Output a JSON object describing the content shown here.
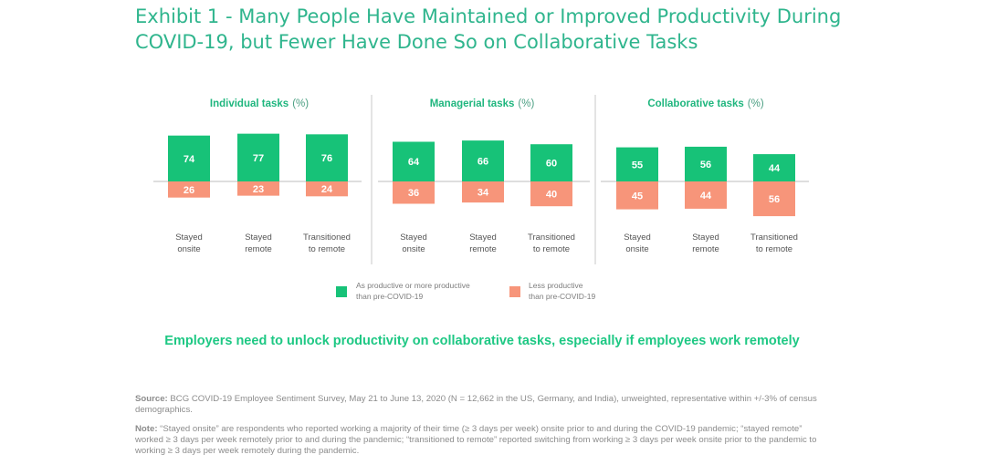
{
  "title": {
    "line1": "Exhibit 1 - Many People Have Maintained or Improved Productivity During",
    "line2": "COVID-19, but Fewer Have Done So on Collaborative Tasks"
  },
  "colors": {
    "positive": "#17c278",
    "negative": "#f7957a",
    "title": "#2fb58d",
    "takeaway": "#1ec884"
  },
  "chart_data": [
    {
      "type": "bar",
      "title": "Individual tasks",
      "unit": "(%)",
      "categories": [
        "Stayed onsite",
        "Stayed remote",
        "Transitioned to remote"
      ],
      "series": [
        {
          "name": "As productive or more productive than pre-COVID-19",
          "values": [
            74,
            77,
            76
          ]
        },
        {
          "name": "Less productive than pre-COVID-19",
          "values": [
            26,
            23,
            24
          ]
        }
      ]
    },
    {
      "type": "bar",
      "title": "Managerial tasks",
      "unit": "(%)",
      "categories": [
        "Stayed onsite",
        "Stayed remote",
        "Transitioned to remote"
      ],
      "series": [
        {
          "name": "As productive or more productive than pre-COVID-19",
          "values": [
            64,
            66,
            60
          ]
        },
        {
          "name": "Less productive than pre-COVID-19",
          "values": [
            36,
            34,
            40
          ]
        }
      ]
    },
    {
      "type": "bar",
      "title": "Collaborative tasks",
      "unit": "(%)",
      "categories": [
        "Stayed onsite",
        "Stayed remote",
        "Transitioned to remote"
      ],
      "series": [
        {
          "name": "As productive or more productive than pre-COVID-19",
          "values": [
            55,
            56,
            44
          ]
        },
        {
          "name": "Less productive than pre-COVID-19",
          "values": [
            45,
            44,
            56
          ]
        }
      ]
    }
  ],
  "category_lines": [
    [
      "Stayed",
      "onsite"
    ],
    [
      "Stayed",
      "remote"
    ],
    [
      "Transitioned",
      "to remote"
    ]
  ],
  "legend": {
    "positive_line1": "As productive or more productive",
    "positive_line2": "than pre-COVID-19",
    "negative_line1": "Less productive",
    "negative_line2": "than pre-COVID-19"
  },
  "takeaway": "Employers need to unlock productivity on collaborative tasks, especially if employees work remotely",
  "footnotes": {
    "source_label": "Source:",
    "source_text": " BCG COVID-19 Employee Sentiment Survey, May 21 to June 13, 2020 (N = 12,662 in the US, Germany, and India), unweighted, representative within +/-3% of census demographics.",
    "note_label": "Note:",
    "note_text": " “Stayed onsite” are respondents who reported working a majority of their time (≥ 3 days per week) onsite prior to and during the COVID-19 pandemic; “stayed remote” worked ≥ 3 days per week remotely prior to and during the pandemic; “transitioned to remote” reported switching from working ≥ 3 days per week onsite prior to the pandemic to working ≥ 3 days per week remotely during the pandemic."
  }
}
